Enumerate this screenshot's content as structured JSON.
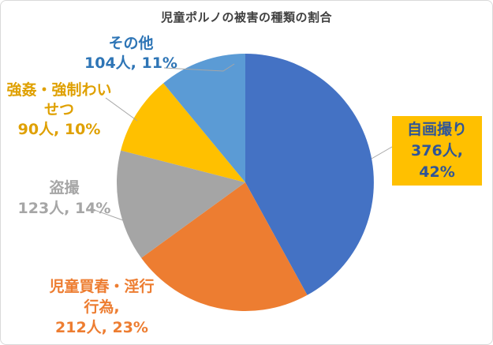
{
  "title": "児童ポルノの被害の種類の割合",
  "chart_data": {
    "type": "pie",
    "title": "児童ポルノの被害の種類の割合",
    "categories": [
      "自画撮り",
      "児童買春・淫行行為",
      "盗撮",
      "強姦・強制わいせつ",
      "その他"
    ],
    "values": [
      376,
      212,
      123,
      90,
      104
    ],
    "percents": [
      42,
      23,
      14,
      10,
      11
    ],
    "unit": "人",
    "colors": [
      "#4472C4",
      "#ED7D31",
      "#A5A5A5",
      "#FFC000",
      "#5B9BD5"
    ],
    "start_angle_deg": 0,
    "direction": "clockwise",
    "legend": "none",
    "label_style": "outside callout labels with leader lines; 自画撮り label shown in yellow box"
  },
  "labels": {
    "sonota": {
      "line1": "その他",
      "line2": "104人, 11%",
      "color": "#2E75B6"
    },
    "gokan": {
      "line1": "強姦・強制わい",
      "line2": "せつ",
      "line3": "90人, 10%",
      "color": "#DFA000"
    },
    "tosatsu": {
      "line1": "盗撮",
      "line2": "123人, 14%",
      "color": "#A6A6A6"
    },
    "kaishun": {
      "line1": "児童買春・淫行",
      "line2": "行為,",
      "line3": "212人, 23%",
      "color": "#ED7D31"
    },
    "jigadori": {
      "line1": "自画撮り",
      "line2": "376人,",
      "line3": "42%",
      "color": "#2F5597",
      "bg": "#FFC000"
    }
  },
  "leader_line_color": "#A6A6A6"
}
